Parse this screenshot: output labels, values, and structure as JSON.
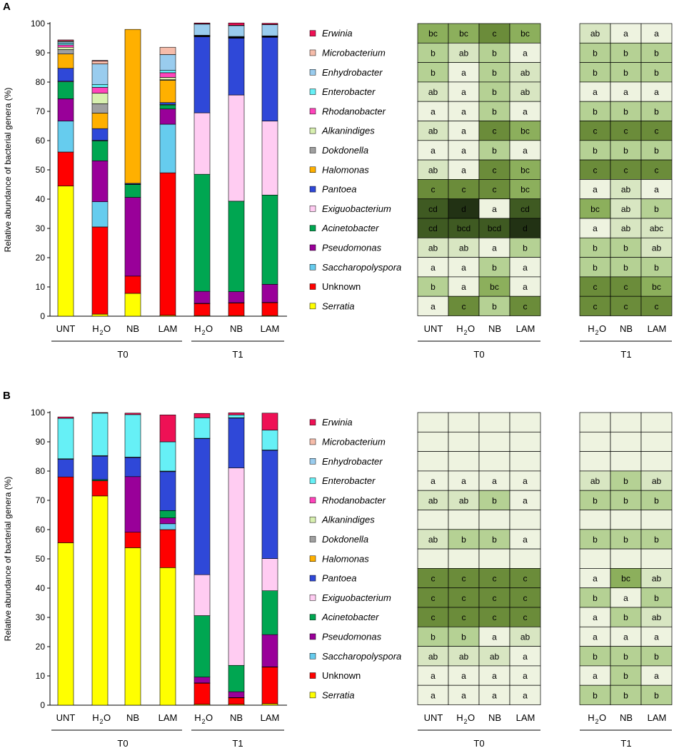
{
  "colors": {
    "Serratia": "#ffff00",
    "Unknown": "#ff0000",
    "Saccharopolyspora": "#66ccee",
    "Pseudomonas": "#990099",
    "Acinetobacter": "#00a651",
    "Exiguobacterium": "#ffccf2",
    "Pantoea": "#2f48d8",
    "Halomonas": "#ffb000",
    "Dokdonella": "#a0a0a0",
    "Alkanindiges": "#d8f0b0",
    "Rhodanobacter": "#ff44bb",
    "Enterobacter": "#66f0f6",
    "Enhydrobacter": "#99ccee",
    "Microbacterium": "#f6bcaa",
    "Erwinia": "#ee1155",
    "heat_a": "#eef3e0",
    "heat_ab": "#d8e6c2",
    "heat_b": "#b5d194",
    "heat_bc": "#8caf5c",
    "heat_c": "#6b8c3a",
    "heat_cd": "#3f5a22",
    "heat_d": "#223214",
    "heat_blank": "#eef3e0"
  },
  "common": {
    "ylabel": "Relative abundance of bacterial genera (%)",
    "yticks": [
      "0",
      "10",
      "20",
      "30",
      "40",
      "50",
      "60",
      "70",
      "80",
      "90",
      "100"
    ],
    "t0_label": "T0",
    "t1_label": "T1",
    "bar_labels": [
      "UNT",
      "H",
      "NB",
      "LAM",
      "H",
      "NB",
      "LAM"
    ],
    "h2o_sub": "2",
    "h2o_o": "O",
    "legend_items": [
      "Erwinia",
      "Microbacterium",
      "Enhydrobacter",
      "Enterobacter",
      "Rhodanobacter",
      "Alkanindiges",
      "Dokdonella",
      "Halomonas",
      "Pantoea",
      "Exiguobacterium",
      "Acinetobacter",
      "Pseudomonas",
      "Saccharopolyspora",
      "Unknown",
      "Serratia"
    ],
    "t0_cols": [
      "UNT",
      "H",
      "NB",
      "LAM"
    ],
    "t1_cols": [
      "H",
      "NB",
      "LAM"
    ]
  },
  "chart_data": [
    {
      "panel": "A",
      "type": "bar",
      "stacked": true,
      "ylabel": "Relative abundance of bacterial genera (%)",
      "ylim": [
        0,
        100
      ],
      "categories": [
        "T0 UNT",
        "T0 H2O",
        "T0 NB",
        "T0 LAM",
        "T1 H2O",
        "T1 NB",
        "T1 LAM"
      ],
      "series": [
        {
          "name": "Serratia",
          "values": [
            44.5,
            0.7,
            7.8,
            0.3,
            0.2,
            0.2,
            0.2
          ]
        },
        {
          "name": "Unknown",
          "values": [
            11.6,
            29.8,
            5.9,
            48.7,
            4.1,
            4.3,
            4.4
          ]
        },
        {
          "name": "Saccharopolyspora",
          "values": [
            10.6,
            8.6,
            0.0,
            16.6,
            0.1,
            0.1,
            0.1
          ]
        },
        {
          "name": "Pseudomonas",
          "values": [
            7.6,
            14.0,
            26.9,
            5.2,
            4.1,
            3.8,
            6.2
          ]
        },
        {
          "name": "Acinetobacter",
          "values": [
            5.8,
            6.8,
            4.4,
            1.4,
            40.0,
            30.9,
            30.5
          ]
        },
        {
          "name": "Exiguobacterium",
          "values": [
            0.2,
            0.2,
            0.1,
            0.2,
            21.0,
            36.3,
            25.3
          ]
        },
        {
          "name": "Pantoea",
          "values": [
            4.4,
            4.0,
            0.3,
            0.6,
            26.0,
            19.4,
            28.6
          ]
        },
        {
          "name": "Halomonas",
          "values": [
            4.9,
            5.3,
            52.6,
            7.6,
            0.1,
            0.1,
            0.1
          ]
        },
        {
          "name": "Dokdonella",
          "values": [
            1.5,
            3.2,
            0.0,
            0.2,
            0.1,
            0.1,
            0.1
          ]
        },
        {
          "name": "Alkanindiges",
          "values": [
            0.8,
            3.6,
            0.0,
            0.8,
            0.1,
            0.1,
            0.1
          ]
        },
        {
          "name": "Rhodanobacter",
          "values": [
            0.8,
            2.0,
            0.0,
            1.6,
            0.1,
            0.1,
            0.1
          ]
        },
        {
          "name": "Enterobacter",
          "values": [
            0.6,
            1.0,
            0.0,
            0.8,
            0.1,
            0.2,
            0.1
          ]
        },
        {
          "name": "Enhydrobacter",
          "values": [
            0.5,
            7.0,
            0.0,
            5.4,
            3.8,
            3.7,
            3.8
          ]
        },
        {
          "name": "Microbacterium",
          "values": [
            0.3,
            1.0,
            0.0,
            2.5,
            0.1,
            0.1,
            0.1
          ]
        },
        {
          "name": "Erwinia",
          "values": [
            0.3,
            0.2,
            0.0,
            0.0,
            0.3,
            0.8,
            0.4
          ]
        }
      ],
      "heatmap": {
        "t0_columns": [
          "UNT",
          "H2O",
          "NB",
          "LAM"
        ],
        "t1_columns": [
          "H2O",
          "NB",
          "LAM"
        ],
        "rows": [
          "Erwinia",
          "Microbacterium",
          "Enhydrobacter",
          "Enterobacter",
          "Rhodanobacter",
          "Alkanindiges",
          "Dokdonella",
          "Halomonas",
          "Pantoea",
          "Exiguobacterium",
          "Acinetobacter",
          "Pseudomonas",
          "Saccharopolyspora",
          "Unknown",
          "Serratia"
        ],
        "t0_values": [
          [
            "bc",
            "bc",
            "c",
            "bc"
          ],
          [
            "b",
            "ab",
            "b",
            "a"
          ],
          [
            "b",
            "a",
            "b",
            "ab"
          ],
          [
            "ab",
            "a",
            "b",
            "ab"
          ],
          [
            "a",
            "a",
            "b",
            "a"
          ],
          [
            "ab",
            "a",
            "c",
            "bc"
          ],
          [
            "a",
            "a",
            "b",
            "a"
          ],
          [
            "ab",
            "a",
            "c",
            "bc"
          ],
          [
            "c",
            "c",
            "c",
            "bc"
          ],
          [
            "cd",
            "d",
            "a",
            "cd"
          ],
          [
            "cd",
            "bcd",
            "bcd",
            "d"
          ],
          [
            "ab",
            "ab",
            "a",
            "b"
          ],
          [
            "a",
            "a",
            "b",
            "a"
          ],
          [
            "b",
            "a",
            "bc",
            "a"
          ],
          [
            "a",
            "c",
            "b",
            "c"
          ]
        ],
        "t1_values": [
          [
            "ab",
            "a",
            "a"
          ],
          [
            "b",
            "b",
            "b"
          ],
          [
            "b",
            "b",
            "b"
          ],
          [
            "a",
            "a",
            "a"
          ],
          [
            "b",
            "b",
            "b"
          ],
          [
            "c",
            "c",
            "c"
          ],
          [
            "b",
            "b",
            "b"
          ],
          [
            "c",
            "c",
            "c"
          ],
          [
            "a",
            "ab",
            "a"
          ],
          [
            "bc",
            "ab",
            "b"
          ],
          [
            "a",
            "ab",
            "abc"
          ],
          [
            "b",
            "b",
            "ab"
          ],
          [
            "b",
            "b",
            "b"
          ],
          [
            "c",
            "c",
            "bc"
          ],
          [
            "c",
            "c",
            "c"
          ]
        ]
      }
    },
    {
      "panel": "B",
      "type": "bar",
      "stacked": true,
      "ylabel": "Relative abundance of bacterial genera (%)",
      "ylim": [
        0,
        100
      ],
      "categories": [
        "T0 UNT",
        "T0 H2O",
        "T0 NB",
        "T0 LAM",
        "T1 H2O",
        "T1 NB",
        "T1 LAM"
      ],
      "series": [
        {
          "name": "Serratia",
          "values": [
            55.5,
            71.5,
            53.8,
            47.0,
            0.3,
            0.3,
            0.5
          ]
        },
        {
          "name": "Unknown",
          "values": [
            22.5,
            5.2,
            5.3,
            13.0,
            7.2,
            2.2,
            12.5
          ]
        },
        {
          "name": "Saccharopolyspora",
          "values": [
            0.0,
            0.0,
            0.0,
            2.0,
            0.1,
            0.1,
            0.1
          ]
        },
        {
          "name": "Pseudomonas",
          "values": [
            0.0,
            0.0,
            19.0,
            2.0,
            2.0,
            2.0,
            11.0
          ]
        },
        {
          "name": "Acinetobacter",
          "values": [
            0.0,
            0.4,
            0.0,
            2.5,
            21.0,
            9.0,
            15.0
          ]
        },
        {
          "name": "Exiguobacterium",
          "values": [
            0.0,
            0.0,
            0.0,
            0.0,
            14.0,
            67.5,
            11.0
          ]
        },
        {
          "name": "Pantoea",
          "values": [
            6.0,
            8.0,
            6.5,
            13.3,
            46.5,
            17.0,
            37.0
          ]
        },
        {
          "name": "Halomonas",
          "values": [
            0.0,
            0.0,
            0.0,
            0.0,
            0.0,
            0.0,
            0.0
          ]
        },
        {
          "name": "Dokdonella",
          "values": [
            0.2,
            0.2,
            0.2,
            0.2,
            0.1,
            0.1,
            0.1
          ]
        },
        {
          "name": "Alkanindiges",
          "values": [
            0.0,
            0.0,
            0.0,
            0.0,
            0.0,
            0.0,
            0.0
          ]
        },
        {
          "name": "Rhodanobacter",
          "values": [
            0.0,
            0.0,
            0.0,
            0.0,
            0.0,
            0.0,
            0.0
          ]
        },
        {
          "name": "Enterobacter",
          "values": [
            13.8,
            14.5,
            14.5,
            10.0,
            7.0,
            1.0,
            6.8
          ]
        },
        {
          "name": "Enhydrobacter",
          "values": [
            0.0,
            0.0,
            0.0,
            0.0,
            0.0,
            0.0,
            0.0
          ]
        },
        {
          "name": "Microbacterium",
          "values": [
            0.0,
            0.0,
            0.0,
            0.0,
            0.0,
            0.0,
            0.0
          ]
        },
        {
          "name": "Erwinia",
          "values": [
            0.5,
            0.2,
            0.5,
            9.2,
            1.5,
            0.7,
            5.8
          ]
        }
      ],
      "heatmap": {
        "t0_columns": [
          "UNT",
          "H2O",
          "NB",
          "LAM"
        ],
        "t1_columns": [
          "H2O",
          "NB",
          "LAM"
        ],
        "rows": [
          "Erwinia",
          "Microbacterium",
          "Enhydrobacter",
          "Enterobacter",
          "Rhodanobacter",
          "Alkanindiges",
          "Dokdonella",
          "Halomonas",
          "Pantoea",
          "Exiguobacterium",
          "Acinetobacter",
          "Pseudomonas",
          "Saccharopolyspora",
          "Unknown",
          "Serratia"
        ],
        "t0_values": [
          [
            "",
            "",
            "",
            ""
          ],
          [
            "",
            "",
            "",
            ""
          ],
          [
            "",
            "",
            "",
            ""
          ],
          [
            "a",
            "a",
            "a",
            "a"
          ],
          [
            "ab",
            "ab",
            "b",
            "a"
          ],
          [
            "",
            "",
            "",
            ""
          ],
          [
            "ab",
            "b",
            "b",
            "a"
          ],
          [
            "",
            "",
            "",
            ""
          ],
          [
            "c",
            "c",
            "c",
            "c"
          ],
          [
            "c",
            "c",
            "c",
            "c"
          ],
          [
            "c",
            "c",
            "c",
            "c"
          ],
          [
            "b",
            "b",
            "a",
            "ab"
          ],
          [
            "ab",
            "ab",
            "ab",
            "a"
          ],
          [
            "a",
            "a",
            "a",
            "a"
          ],
          [
            "a",
            "a",
            "a",
            "a"
          ]
        ],
        "t1_values": [
          [
            "",
            "",
            ""
          ],
          [
            "",
            "",
            ""
          ],
          [
            "",
            "",
            ""
          ],
          [
            "ab",
            "b",
            "ab"
          ],
          [
            "b",
            "b",
            "b"
          ],
          [
            "",
            "",
            ""
          ],
          [
            "b",
            "b",
            "b"
          ],
          [
            "",
            "",
            ""
          ],
          [
            "a",
            "bc",
            "ab"
          ],
          [
            "b",
            "a",
            "b"
          ],
          [
            "a",
            "b",
            "ab"
          ],
          [
            "a",
            "a",
            "a"
          ],
          [
            "b",
            "b",
            "b"
          ],
          [
            "a",
            "b",
            "a"
          ],
          [
            "b",
            "b",
            "b"
          ]
        ]
      }
    }
  ]
}
